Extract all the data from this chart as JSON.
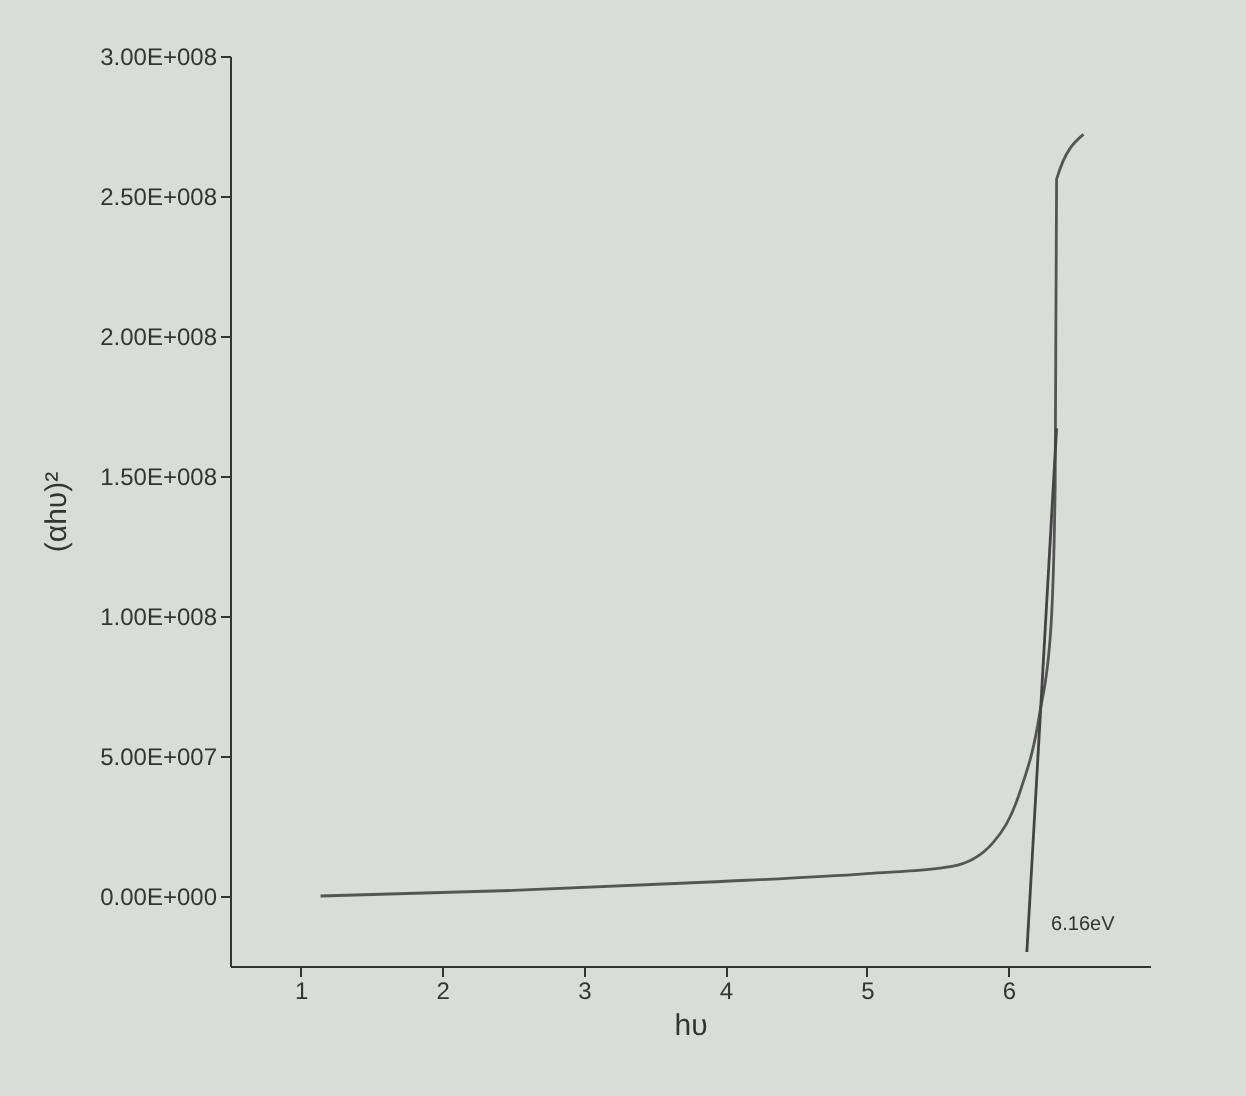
{
  "chart_data": {
    "type": "line",
    "xlabel": "hυ",
    "ylabel": "(αhυ)²",
    "series": [
      {
        "color": "#555555",
        "x": [
          1.14,
          2.5,
          3.89,
          5.0,
          5.6,
          5.89,
          6.08,
          6.22,
          6.3,
          6.33,
          6.34,
          6.53
        ],
        "values": [
          0,
          2000000,
          5000000,
          8000000,
          10600000,
          19000000,
          37000000,
          65000000,
          96000000,
          146000000,
          256000000,
          272000000
        ]
      },
      {
        "type": "line",
        "color": "#444444",
        "x": [
          6.13,
          6.34
        ],
        "values": [
          -20000000,
          167000000
        ]
      }
    ],
    "xlim": [
      0.5,
      7
    ],
    "xticks": [
      1,
      2,
      3,
      4,
      5,
      6
    ],
    "ylim": [
      -25000000,
      300000000
    ],
    "yticks": [
      {
        "value": 0,
        "label": "0.00E+000"
      },
      {
        "value": 50000000,
        "label": "5.00E+007"
      },
      {
        "value": 100000000,
        "label": "1.00E+008"
      },
      {
        "value": 150000000,
        "label": "1.50E+008"
      },
      {
        "value": 200000000,
        "label": "2.00E+008"
      },
      {
        "value": 250000000,
        "label": "2.50E+008"
      },
      {
        "value": 300000000,
        "label": "3.00E+008"
      }
    ],
    "annotations": [
      {
        "text": "6.16eV",
        "x": 6.16,
        "y": -10000000
      }
    ],
    "marker": "none",
    "line_style": "solid"
  }
}
